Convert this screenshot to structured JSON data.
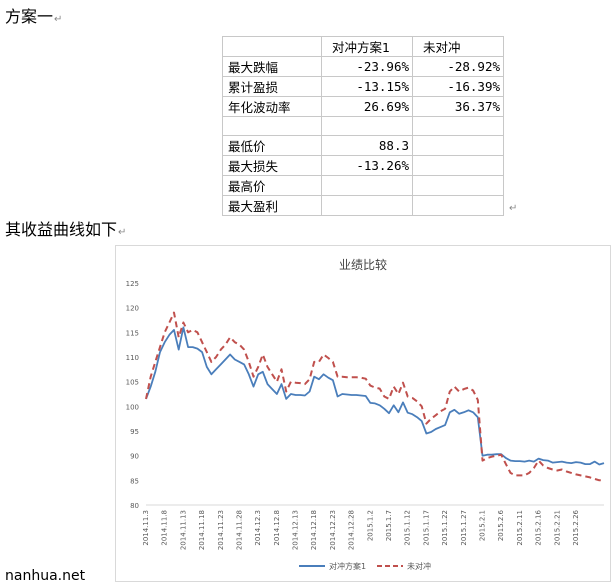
{
  "headings": {
    "plan_title": "方案一",
    "curve_intro": "其收益曲线如下",
    "paragraph_mark": "↵"
  },
  "table": {
    "columns": [
      "",
      "对冲方案1",
      "未对冲"
    ],
    "rows": [
      {
        "label": "最大跌幅",
        "hedged": "-23.96%",
        "unhedged": "-28.92%"
      },
      {
        "label": "累计盈损",
        "hedged": "-13.15%",
        "unhedged": "-16.39%"
      },
      {
        "label": "年化波动率",
        "hedged": "26.69%",
        "unhedged": "36.37%"
      },
      {
        "label": "",
        "hedged": "",
        "unhedged": ""
      },
      {
        "label": "最低价",
        "hedged": "88.3",
        "unhedged": ""
      },
      {
        "label": "最大损失",
        "hedged": "-13.26%",
        "unhedged": ""
      },
      {
        "label": "最高价",
        "hedged": "",
        "unhedged": ""
      },
      {
        "label": "最大盈利",
        "hedged": "",
        "unhedged": ""
      }
    ]
  },
  "watermark": "nanhua.net",
  "chart_data": {
    "type": "line",
    "title": "业绩比较",
    "ylim": [
      80,
      125
    ],
    "yticks": [
      80,
      85,
      90,
      95,
      100,
      105,
      110,
      115,
      120,
      125
    ],
    "grid": false,
    "legend": "bottom",
    "x_tick_labels": [
      "2014.11.3",
      "2014.11.8",
      "2014.11.13",
      "2014.11.18",
      "2014.11.23",
      "2014.11.28",
      "2014.12.3",
      "2014.12.8",
      "2014.12.13",
      "2014.12.18",
      "2014.12.23",
      "2014.12.28",
      "2015.1.2",
      "2015.1.7",
      "2015.1.12",
      "2015.1.17",
      "2015.1.22",
      "2015.1.27",
      "2015.2.1",
      "2015.2.6",
      "2015.2.11",
      "2015.2.16",
      "2015.2.21",
      "2015.2.26"
    ],
    "series": [
      {
        "name": "对冲方案1",
        "color": "#4a7ebb",
        "style": "solid",
        "values": [
          101.5,
          104,
          107,
          111,
          113,
          114.5,
          115.5,
          111.5,
          116,
          112,
          112,
          111.7,
          111,
          108,
          106.5,
          107.5,
          108.5,
          109.5,
          110.5,
          109.5,
          109,
          108.5,
          106.5,
          104,
          106.5,
          107,
          104.5,
          103.5,
          102.5,
          104.5,
          101.5,
          102.5,
          102.3,
          102.3,
          102.2,
          103,
          106,
          105.5,
          106.5,
          105.8,
          105.3,
          102,
          102.5,
          102.4,
          102.3,
          102.3,
          102.2,
          102.1,
          100.7,
          100.6,
          100.2,
          99.5,
          98.6,
          100.2,
          98.8,
          100.8,
          98.7,
          98.4,
          97.8,
          97,
          94.5,
          94.8,
          95.4,
          95.8,
          96.2,
          98.8,
          99.3,
          98.5,
          98.8,
          99.2,
          98.8,
          97.8,
          90,
          90.2,
          90.2,
          90.3,
          90.3,
          89.5,
          89,
          88.9,
          88.9,
          88.8,
          89,
          88.8,
          89.4,
          89.1,
          89,
          88.6,
          88.7,
          88.8,
          88.6,
          88.5,
          88.7,
          88.6,
          88.3,
          88.3,
          88.8,
          88.2,
          88.5
        ]
      },
      {
        "name": "未对冲",
        "color": "#c0504d",
        "style": "dashed",
        "values": [
          101.5,
          106,
          109,
          112,
          115,
          117,
          119,
          114,
          117,
          115,
          115.5,
          115,
          113,
          111,
          109,
          110,
          111.5,
          112.5,
          114,
          113,
          112.5,
          111.5,
          109,
          106,
          108,
          110.5,
          108,
          106.5,
          105,
          107.5,
          103,
          105,
          104.8,
          104.7,
          104.5,
          105.5,
          109,
          109,
          110.5,
          109.8,
          109,
          106,
          106,
          105.9,
          105.9,
          105.9,
          105.8,
          105.6,
          104.2,
          103.8,
          103.6,
          102,
          101.5,
          104,
          102.5,
          104.8,
          102,
          101.7,
          101,
          100,
          96.5,
          97.5,
          98.2,
          99,
          99.5,
          103,
          104,
          103,
          103.5,
          103.8,
          103.2,
          101.3,
          89,
          89.5,
          89.8,
          90,
          90.2,
          88.3,
          86.5,
          86,
          86,
          86,
          86.5,
          87.5,
          89,
          88,
          87.5,
          87.2,
          87,
          87.2,
          86.8,
          86.5,
          86.2,
          86,
          85.8,
          85.6,
          85.3,
          85,
          85
        ]
      }
    ]
  }
}
